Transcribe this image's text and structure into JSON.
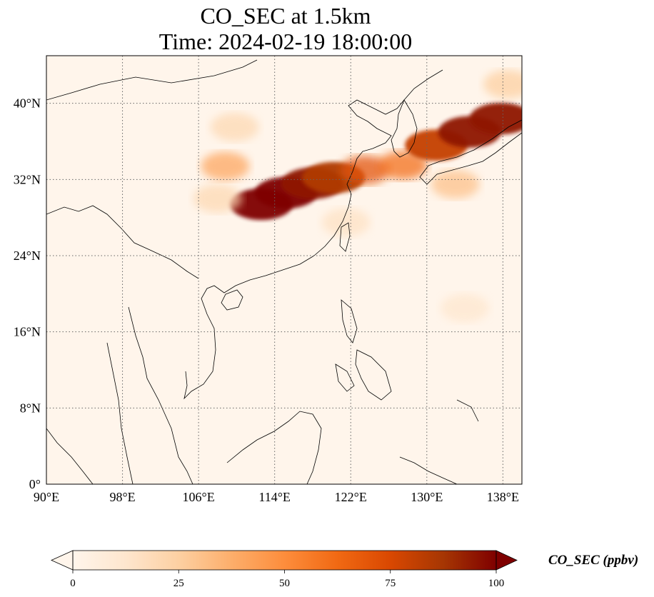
{
  "title": {
    "line1": "CO_SEC at 1.5km",
    "line2": "Time: 2024-02-19 18:00:00"
  },
  "map": {
    "lon_range": [
      90,
      140
    ],
    "lat_range": [
      0,
      45
    ],
    "lon_ticks": [
      {
        "value": 90,
        "label": "90°E"
      },
      {
        "value": 98,
        "label": "98°E"
      },
      {
        "value": 106,
        "label": "106°E"
      },
      {
        "value": 114,
        "label": "114°E"
      },
      {
        "value": 122,
        "label": "122°E"
      },
      {
        "value": 130,
        "label": "130°E"
      },
      {
        "value": 138,
        "label": "138°E"
      }
    ],
    "lat_ticks": [
      {
        "value": 0,
        "label": "0°"
      },
      {
        "value": 8,
        "label": "8°N"
      },
      {
        "value": 16,
        "label": "16°N"
      },
      {
        "value": 24,
        "label": "24°N"
      },
      {
        "value": 32,
        "label": "32°N"
      },
      {
        "value": 40,
        "label": "40°N"
      }
    ],
    "gridlines": true,
    "background_color": "#fff5eb",
    "coastline_color": "#000000"
  },
  "colorbar": {
    "label": "CO_SEC (ppbv)",
    "cmap": "OrRd",
    "range": [
      0,
      100
    ],
    "extend": "both",
    "ticks": [
      {
        "value": 0,
        "label": "0"
      },
      {
        "value": 25,
        "label": "25"
      },
      {
        "value": 50,
        "label": "50"
      },
      {
        "value": 75,
        "label": "75"
      },
      {
        "value": 100,
        "label": "100"
      }
    ],
    "colors": [
      "#fff5eb",
      "#fee6ce",
      "#fdd0a2",
      "#fdae6b",
      "#fd8d3c",
      "#f16913",
      "#d94801",
      "#a63603",
      "#7f0000"
    ]
  },
  "plumes": [
    {
      "lon": 115.2,
      "lat": 30.6,
      "value": 100
    },
    {
      "lon": 112.6,
      "lat": 29.4,
      "value": 100
    },
    {
      "lon": 118.0,
      "lat": 31.6,
      "value": 95
    },
    {
      "lon": 120.2,
      "lat": 32.2,
      "value": 85
    },
    {
      "lon": 123.5,
      "lat": 33.0,
      "value": 70
    },
    {
      "lon": 127.5,
      "lat": 33.5,
      "value": 60
    },
    {
      "lon": 131.0,
      "lat": 35.6,
      "value": 80
    },
    {
      "lon": 134.5,
      "lat": 37.0,
      "value": 95
    },
    {
      "lon": 137.8,
      "lat": 38.4,
      "value": 95
    },
    {
      "lon": 108.8,
      "lat": 33.4,
      "value": 40
    },
    {
      "lon": 109.8,
      "lat": 37.5,
      "value": 20
    },
    {
      "lon": 108.0,
      "lat": 30.0,
      "value": 20
    },
    {
      "lon": 138.5,
      "lat": 42.0,
      "value": 25
    },
    {
      "lon": 133.0,
      "lat": 31.5,
      "value": 30
    },
    {
      "lon": 121.5,
      "lat": 27.5,
      "value": 15
    },
    {
      "lon": 134.0,
      "lat": 18.5,
      "value": 12
    }
  ]
}
